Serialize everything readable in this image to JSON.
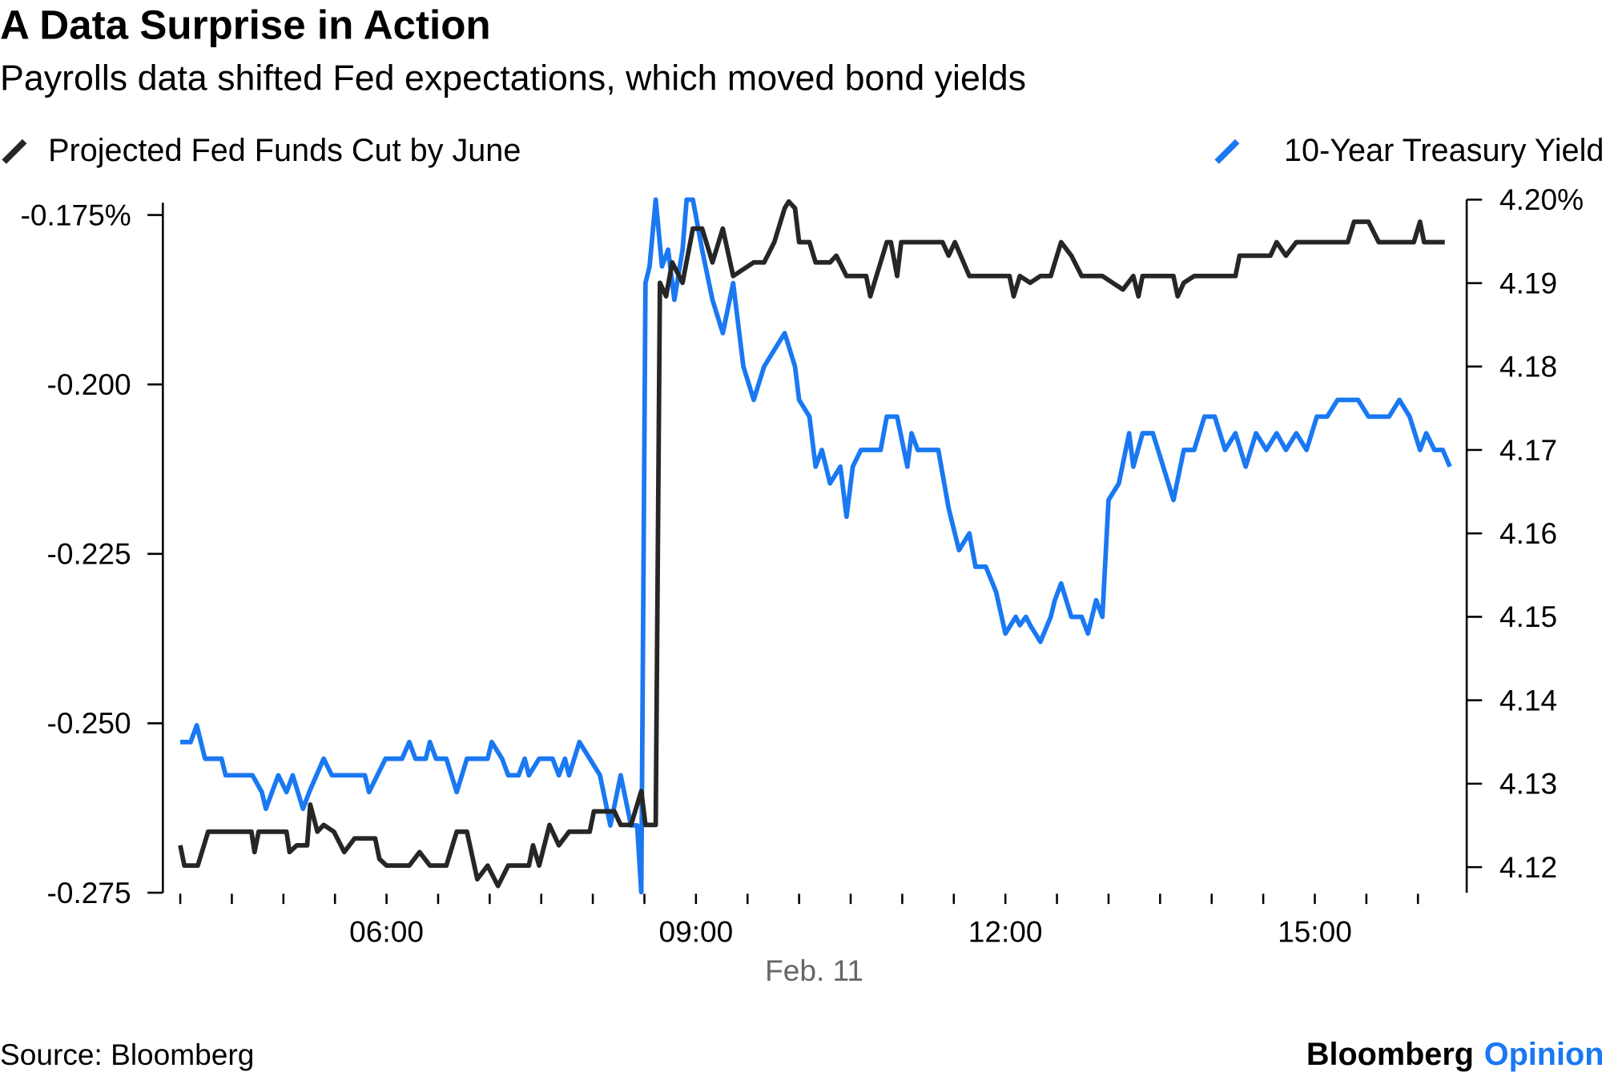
{
  "chart_data": {
    "type": "line",
    "title": "A Data Surprise in Action",
    "subtitle": "Payrolls data shifted Fed expectations, which moved bond yields",
    "xlabel": "Feb. 11",
    "x_unit": "hour of day",
    "xlim": [
      4,
      16.5
    ],
    "x_ticks": [
      4,
      4.5,
      5,
      5.5,
      6,
      6.5,
      7,
      7.5,
      8,
      8.5,
      9,
      9.5,
      10,
      10.5,
      11,
      11.5,
      12,
      12.5,
      13,
      13.5,
      14,
      14.5,
      15,
      15.5,
      16
    ],
    "x_tick_labels": [
      {
        "value": 6,
        "label": "06:00"
      },
      {
        "value": 9,
        "label": "09:00"
      },
      {
        "value": 12,
        "label": "12:00"
      },
      {
        "value": 15,
        "label": "15:00"
      }
    ],
    "left_axis": {
      "ylim": [
        -0.275,
        -0.175
      ],
      "ticks": [
        {
          "value": -0.175,
          "label": "-0.175%"
        },
        {
          "value": -0.2,
          "label": "-0.200"
        },
        {
          "value": -0.225,
          "label": "-0.225"
        },
        {
          "value": -0.25,
          "label": "-0.250"
        },
        {
          "value": -0.275,
          "label": "-0.275"
        }
      ]
    },
    "right_axis": {
      "ylim": [
        4.12,
        4.2
      ],
      "ticks": [
        {
          "value": 4.2,
          "label": "4.20%"
        },
        {
          "value": 4.19,
          "label": "4.19"
        },
        {
          "value": 4.18,
          "label": "4.18"
        },
        {
          "value": 4.17,
          "label": "4.17"
        },
        {
          "value": 4.16,
          "label": "4.16"
        },
        {
          "value": 4.15,
          "label": "4.15"
        },
        {
          "value": 4.14,
          "label": "4.14"
        },
        {
          "value": 4.13,
          "label": "4.13"
        },
        {
          "value": 4.12,
          "label": "4.12"
        }
      ]
    },
    "legend_placement": "top",
    "series": [
      {
        "name": "Projected Fed Funds Cut by June",
        "axis": "left",
        "color": "#262626",
        "points": [
          [
            4.0,
            -0.268
          ],
          [
            4.04,
            -0.271
          ],
          [
            4.17,
            -0.271
          ],
          [
            4.27,
            -0.266
          ],
          [
            4.69,
            -0.266
          ],
          [
            4.72,
            -0.269
          ],
          [
            4.76,
            -0.266
          ],
          [
            5.03,
            -0.266
          ],
          [
            5.06,
            -0.269
          ],
          [
            5.13,
            -0.268
          ],
          [
            5.23,
            -0.268
          ],
          [
            5.26,
            -0.262
          ],
          [
            5.33,
            -0.266
          ],
          [
            5.39,
            -0.265
          ],
          [
            5.49,
            -0.266
          ],
          [
            5.59,
            -0.269
          ],
          [
            5.69,
            -0.267
          ],
          [
            5.89,
            -0.267
          ],
          [
            5.93,
            -0.27
          ],
          [
            6.0,
            -0.271
          ],
          [
            6.22,
            -0.271
          ],
          [
            6.32,
            -0.269
          ],
          [
            6.42,
            -0.271
          ],
          [
            6.58,
            -0.271
          ],
          [
            6.68,
            -0.266
          ],
          [
            6.78,
            -0.266
          ],
          [
            6.88,
            -0.273
          ],
          [
            6.98,
            -0.271
          ],
          [
            7.08,
            -0.274
          ],
          [
            7.18,
            -0.271
          ],
          [
            7.38,
            -0.271
          ],
          [
            7.42,
            -0.268
          ],
          [
            7.48,
            -0.271
          ],
          [
            7.58,
            -0.265
          ],
          [
            7.67,
            -0.268
          ],
          [
            7.77,
            -0.266
          ],
          [
            7.97,
            -0.266
          ],
          [
            8.01,
            -0.263
          ],
          [
            8.21,
            -0.263
          ],
          [
            8.27,
            -0.265
          ],
          [
            8.37,
            -0.265
          ],
          [
            8.47,
            -0.26
          ],
          [
            8.51,
            -0.265
          ],
          [
            8.61,
            -0.265
          ],
          [
            8.65,
            -0.185
          ],
          [
            8.71,
            -0.187
          ],
          [
            8.77,
            -0.182
          ],
          [
            8.87,
            -0.185
          ],
          [
            8.97,
            -0.177
          ],
          [
            9.06,
            -0.177
          ],
          [
            9.16,
            -0.182
          ],
          [
            9.26,
            -0.177
          ],
          [
            9.36,
            -0.184
          ],
          [
            9.56,
            -0.182
          ],
          [
            9.66,
            -0.182
          ],
          [
            9.76,
            -0.179
          ],
          [
            9.86,
            -0.174
          ],
          [
            9.9,
            -0.173
          ],
          [
            9.96,
            -0.174
          ],
          [
            10.0,
            -0.179
          ],
          [
            10.1,
            -0.179
          ],
          [
            10.16,
            -0.182
          ],
          [
            10.3,
            -0.182
          ],
          [
            10.36,
            -0.181
          ],
          [
            10.46,
            -0.184
          ],
          [
            10.65,
            -0.184
          ],
          [
            10.69,
            -0.187
          ],
          [
            10.75,
            -0.184
          ],
          [
            10.85,
            -0.179
          ],
          [
            10.89,
            -0.179
          ],
          [
            10.95,
            -0.184
          ],
          [
            10.99,
            -0.179
          ],
          [
            11.39,
            -0.179
          ],
          [
            11.45,
            -0.181
          ],
          [
            11.51,
            -0.179
          ],
          [
            11.65,
            -0.184
          ],
          [
            12.04,
            -0.184
          ],
          [
            12.08,
            -0.187
          ],
          [
            12.14,
            -0.184
          ],
          [
            12.24,
            -0.185
          ],
          [
            12.34,
            -0.184
          ],
          [
            12.44,
            -0.184
          ],
          [
            12.54,
            -0.179
          ],
          [
            12.64,
            -0.181
          ],
          [
            12.74,
            -0.184
          ],
          [
            12.94,
            -0.184
          ],
          [
            13.04,
            -0.185
          ],
          [
            13.14,
            -0.186
          ],
          [
            13.24,
            -0.184
          ],
          [
            13.29,
            -0.187
          ],
          [
            13.33,
            -0.184
          ],
          [
            13.63,
            -0.184
          ],
          [
            13.67,
            -0.187
          ],
          [
            13.73,
            -0.185
          ],
          [
            13.83,
            -0.184
          ],
          [
            14.23,
            -0.184
          ],
          [
            14.27,
            -0.181
          ],
          [
            14.57,
            -0.181
          ],
          [
            14.63,
            -0.179
          ],
          [
            14.72,
            -0.181
          ],
          [
            14.82,
            -0.179
          ],
          [
            15.32,
            -0.179
          ],
          [
            15.38,
            -0.176
          ],
          [
            15.52,
            -0.176
          ],
          [
            15.62,
            -0.179
          ],
          [
            15.96,
            -0.179
          ],
          [
            16.02,
            -0.176
          ],
          [
            16.06,
            -0.179
          ],
          [
            16.26,
            -0.179
          ]
        ]
      },
      {
        "name": "10-Year Treasury Yield",
        "axis": "right",
        "color": "#1a78f2",
        "points": [
          [
            4.0,
            4.135
          ],
          [
            4.1,
            4.135
          ],
          [
            4.16,
            4.137
          ],
          [
            4.24,
            4.133
          ],
          [
            4.4,
            4.133
          ],
          [
            4.44,
            4.131
          ],
          [
            4.7,
            4.131
          ],
          [
            4.79,
            4.129
          ],
          [
            4.83,
            4.127
          ],
          [
            4.89,
            4.129
          ],
          [
            4.95,
            4.131
          ],
          [
            5.03,
            4.129
          ],
          [
            5.09,
            4.131
          ],
          [
            5.19,
            4.127
          ],
          [
            5.25,
            4.129
          ],
          [
            5.39,
            4.133
          ],
          [
            5.47,
            4.131
          ],
          [
            5.79,
            4.131
          ],
          [
            5.83,
            4.129
          ],
          [
            5.99,
            4.133
          ],
          [
            6.15,
            4.133
          ],
          [
            6.22,
            4.135
          ],
          [
            6.28,
            4.133
          ],
          [
            6.38,
            4.133
          ],
          [
            6.42,
            4.135
          ],
          [
            6.48,
            4.133
          ],
          [
            6.58,
            4.133
          ],
          [
            6.68,
            4.129
          ],
          [
            6.78,
            4.133
          ],
          [
            6.98,
            4.133
          ],
          [
            7.02,
            4.135
          ],
          [
            7.12,
            4.133
          ],
          [
            7.18,
            4.131
          ],
          [
            7.28,
            4.131
          ],
          [
            7.34,
            4.133
          ],
          [
            7.38,
            4.131
          ],
          [
            7.48,
            4.133
          ],
          [
            7.61,
            4.133
          ],
          [
            7.67,
            4.131
          ],
          [
            7.73,
            4.133
          ],
          [
            7.77,
            4.131
          ],
          [
            7.87,
            4.135
          ],
          [
            7.97,
            4.133
          ],
          [
            8.07,
            4.131
          ],
          [
            8.17,
            4.125
          ],
          [
            8.27,
            4.131
          ],
          [
            8.37,
            4.125
          ],
          [
            8.43,
            4.125
          ],
          [
            8.47,
            4.117
          ],
          [
            8.51,
            4.19
          ],
          [
            8.55,
            4.192
          ],
          [
            8.61,
            4.2
          ],
          [
            8.67,
            4.192
          ],
          [
            8.73,
            4.194
          ],
          [
            8.79,
            4.188
          ],
          [
            8.87,
            4.194
          ],
          [
            8.91,
            4.2
          ],
          [
            8.97,
            4.2
          ],
          [
            9.06,
            4.194
          ],
          [
            9.16,
            4.188
          ],
          [
            9.26,
            4.184
          ],
          [
            9.36,
            4.19
          ],
          [
            9.46,
            4.18
          ],
          [
            9.56,
            4.176
          ],
          [
            9.66,
            4.18
          ],
          [
            9.76,
            4.182
          ],
          [
            9.86,
            4.184
          ],
          [
            9.96,
            4.18
          ],
          [
            10.0,
            4.176
          ],
          [
            10.1,
            4.174
          ],
          [
            10.16,
            4.168
          ],
          [
            10.22,
            4.17
          ],
          [
            10.3,
            4.166
          ],
          [
            10.4,
            4.168
          ],
          [
            10.46,
            4.162
          ],
          [
            10.52,
            4.168
          ],
          [
            10.6,
            4.17
          ],
          [
            10.79,
            4.17
          ],
          [
            10.85,
            4.174
          ],
          [
            10.95,
            4.174
          ],
          [
            11.05,
            4.168
          ],
          [
            11.09,
            4.172
          ],
          [
            11.15,
            4.17
          ],
          [
            11.35,
            4.17
          ],
          [
            11.45,
            4.163
          ],
          [
            11.55,
            4.158
          ],
          [
            11.65,
            4.16
          ],
          [
            11.71,
            4.156
          ],
          [
            11.81,
            4.156
          ],
          [
            11.91,
            4.153
          ],
          [
            12.0,
            4.148
          ],
          [
            12.1,
            4.15
          ],
          [
            12.14,
            4.149
          ],
          [
            12.2,
            4.15
          ],
          [
            12.24,
            4.149
          ],
          [
            12.34,
            4.147
          ],
          [
            12.44,
            4.15
          ],
          [
            12.48,
            4.152
          ],
          [
            12.54,
            4.154
          ],
          [
            12.64,
            4.15
          ],
          [
            12.74,
            4.15
          ],
          [
            12.8,
            4.148
          ],
          [
            12.88,
            4.152
          ],
          [
            12.94,
            4.15
          ],
          [
            13.0,
            4.164
          ],
          [
            13.1,
            4.166
          ],
          [
            13.2,
            4.172
          ],
          [
            13.24,
            4.168
          ],
          [
            13.33,
            4.172
          ],
          [
            13.43,
            4.172
          ],
          [
            13.53,
            4.168
          ],
          [
            13.63,
            4.164
          ],
          [
            13.73,
            4.17
          ],
          [
            13.83,
            4.17
          ],
          [
            13.93,
            4.174
          ],
          [
            14.03,
            4.174
          ],
          [
            14.13,
            4.17
          ],
          [
            14.23,
            4.172
          ],
          [
            14.33,
            4.168
          ],
          [
            14.43,
            4.172
          ],
          [
            14.53,
            4.17
          ],
          [
            14.63,
            4.172
          ],
          [
            14.72,
            4.17
          ],
          [
            14.82,
            4.172
          ],
          [
            14.92,
            4.17
          ],
          [
            15.02,
            4.174
          ],
          [
            15.12,
            4.174
          ],
          [
            15.22,
            4.176
          ],
          [
            15.42,
            4.176
          ],
          [
            15.52,
            4.174
          ],
          [
            15.72,
            4.174
          ],
          [
            15.82,
            4.176
          ],
          [
            15.92,
            4.174
          ],
          [
            16.02,
            4.17
          ],
          [
            16.08,
            4.172
          ],
          [
            16.16,
            4.17
          ],
          [
            16.24,
            4.17
          ],
          [
            16.31,
            4.168
          ]
        ]
      }
    ]
  },
  "footer": {
    "source": "Source: Bloomberg",
    "brand_name": "Bloomberg",
    "brand_suffix": "Opinion"
  },
  "colors": {
    "brand_accent": "#1a78f2",
    "axis": "#000000"
  }
}
